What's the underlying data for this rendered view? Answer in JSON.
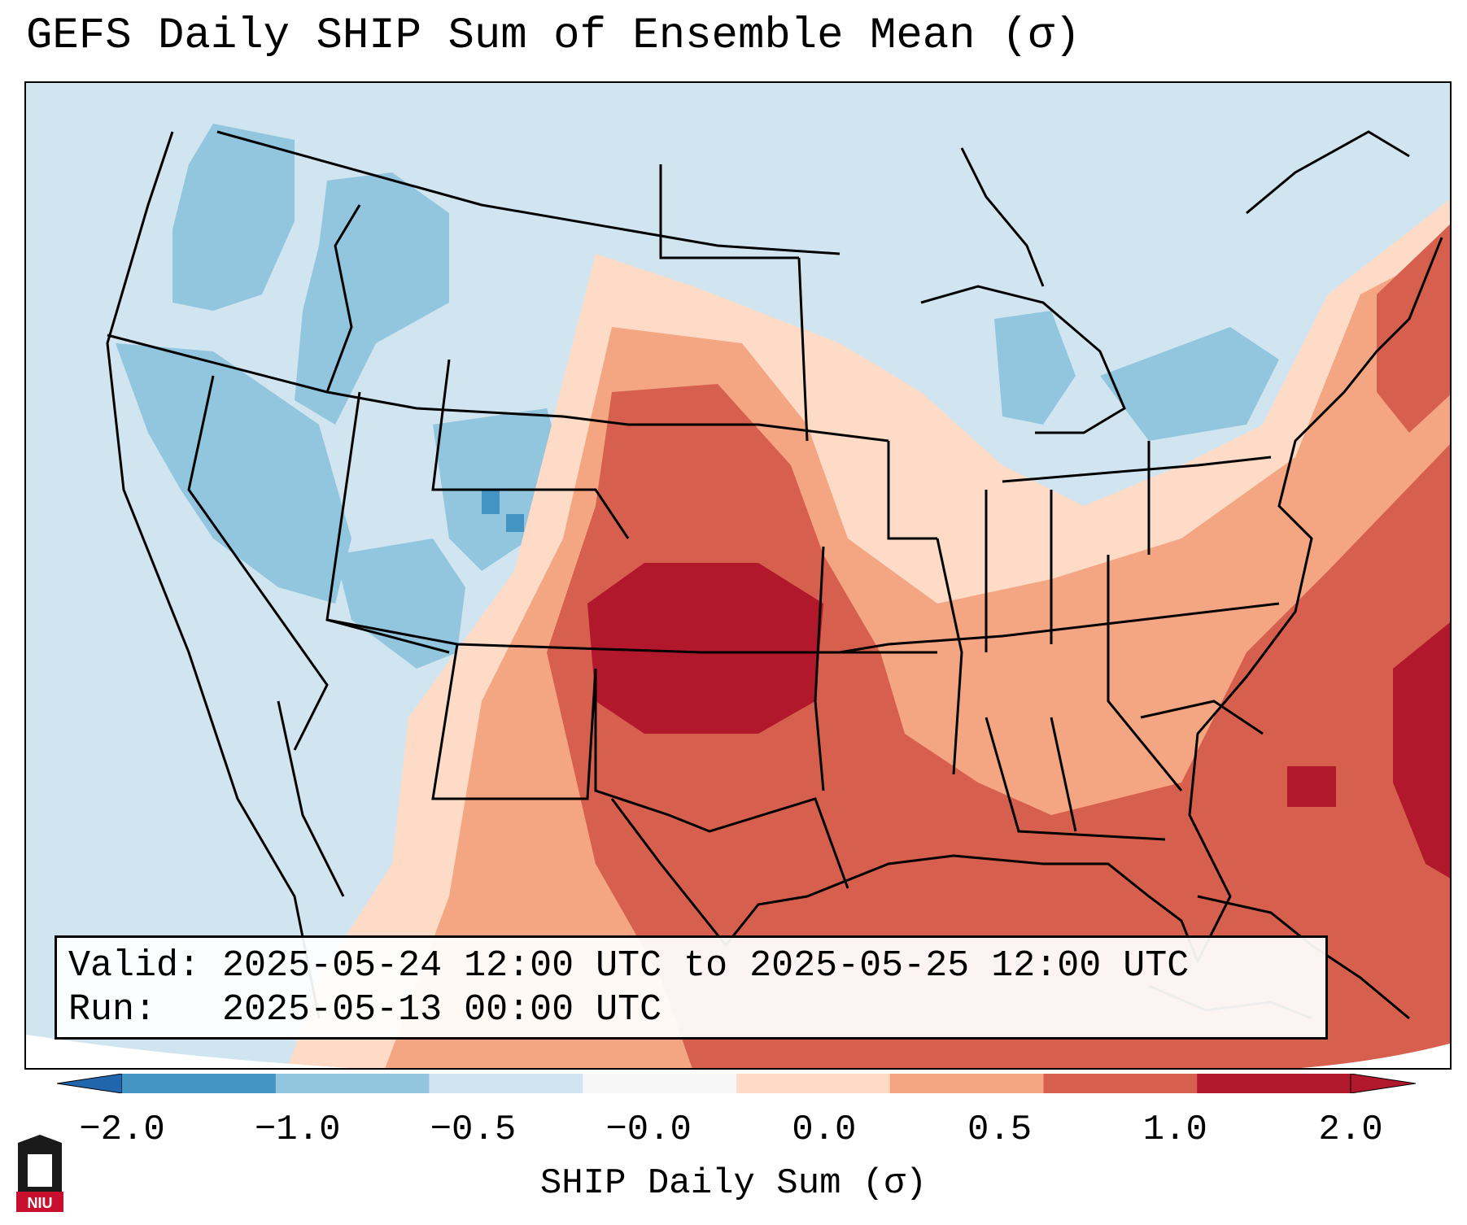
{
  "title": "GEFS Daily SHIP Sum of Ensemble Mean (σ)",
  "info": {
    "valid_label": "Valid:",
    "valid_value": "2025-05-24 12:00 UTC to 2025-05-25 12:00 UTC",
    "run_label": "Run:",
    "run_value": "2025-05-13 00:00 UTC"
  },
  "colorbar": {
    "title": "SHIP Daily Sum (σ)",
    "ticks": [
      "−2.0",
      "−1.0",
      "−0.5",
      "−0.0",
      "0.0",
      "0.5",
      "1.0",
      "2.0"
    ],
    "colors": [
      "#4393c3",
      "#92c5de",
      "#d1e5f0",
      "#f7f7f7",
      "#fddbc7",
      "#f4a582",
      "#d6604d",
      "#b2182b"
    ]
  },
  "map": {
    "background_color": "#d6e6f0",
    "legend_scale": "SHIP (σ)"
  },
  "logo": {
    "text": "NIU"
  }
}
